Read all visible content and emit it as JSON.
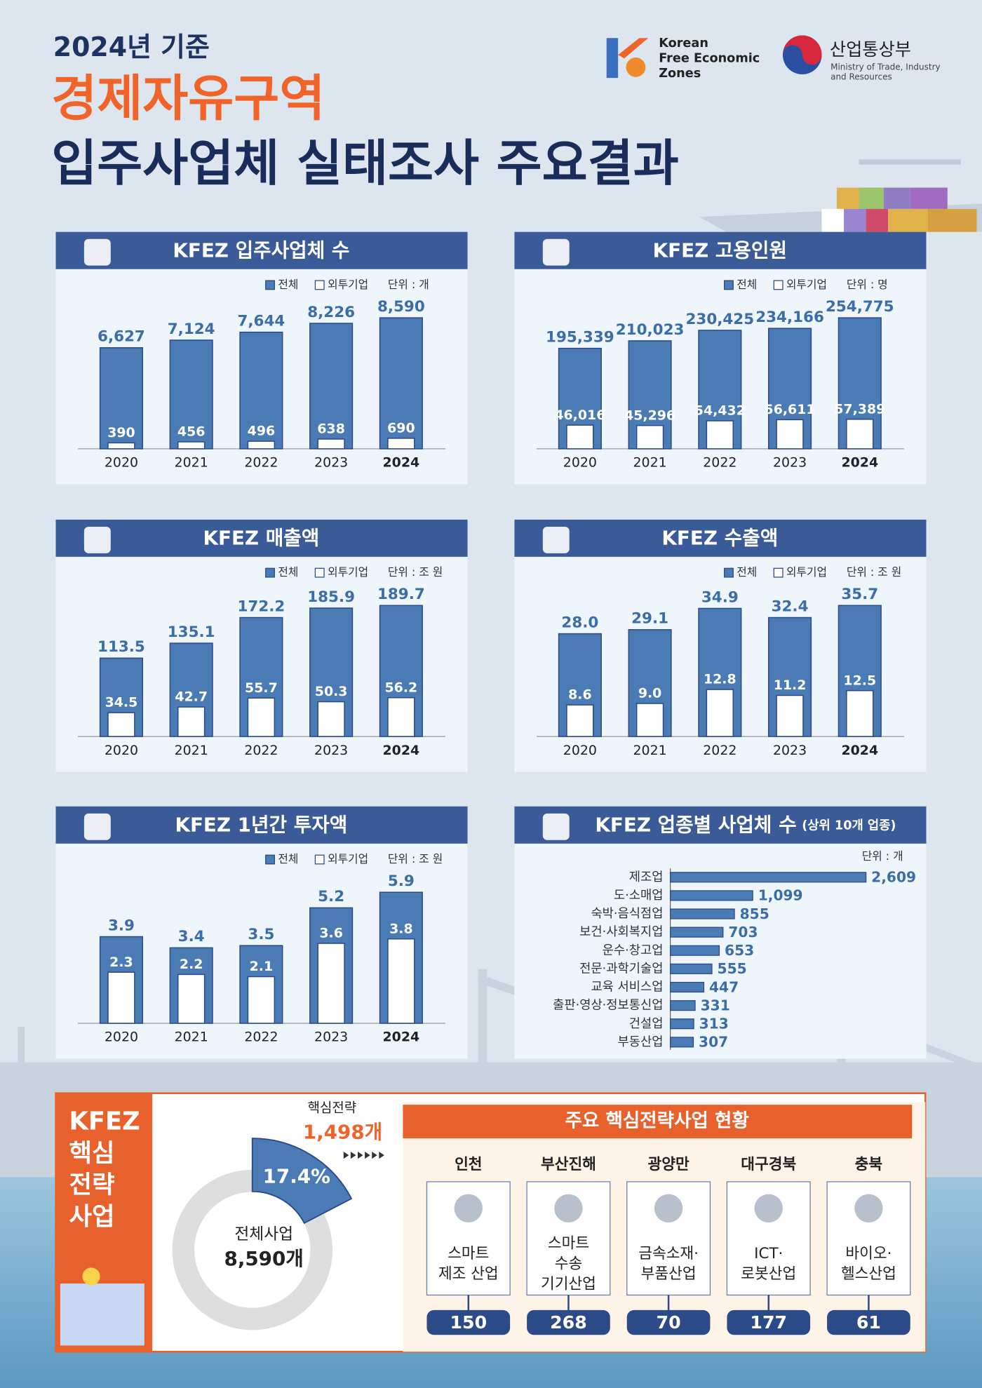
{
  "header": {
    "year_label": "2024년 기준",
    "title_line1": "경제자유구역",
    "title_line2": "입주사업체 실태조사 주요결과",
    "logo_kfez": [
      "Korean",
      "Free Economic",
      "Zones"
    ],
    "logo_ministry": "산업통상부",
    "logo_ministry_en": [
      "Ministry of Trade, Industry",
      "and Resources"
    ]
  },
  "chart_data": [
    {
      "type": "bar",
      "title": "KFEZ 입주사업체 수",
      "unit": "단위 : 개",
      "categories": [
        "2020",
        "2021",
        "2022",
        "2023",
        "2024"
      ],
      "series": [
        {
          "name": "전체",
          "color": "#4a7bb5",
          "values": [
            6627,
            7124,
            7644,
            8226,
            8590
          ],
          "value_labels": [
            "6,627",
            "7,124",
            "7,644",
            "8,226",
            "8,590"
          ]
        },
        {
          "name": "외투기업",
          "color": "#ffffff",
          "values": [
            390,
            456,
            496,
            638,
            690
          ]
        }
      ]
    },
    {
      "type": "bar",
      "title": "KFEZ 고용인원",
      "unit": "단위 : 명",
      "categories": [
        "2020",
        "2021",
        "2022",
        "2023",
        "2024"
      ],
      "series": [
        {
          "name": "전체",
          "color": "#4a7bb5",
          "values": [
            195339,
            210023,
            230425,
            234166,
            254775
          ],
          "value_labels": [
            "195,339",
            "210,023",
            "230,425",
            "234,166",
            "254,775"
          ]
        },
        {
          "name": "외투기업",
          "color": "#ffffff",
          "values": [
            46016,
            45296,
            54432,
            56611,
            57389
          ],
          "value_labels": [
            "46,016",
            "45,296",
            "54,432",
            "56,611",
            "57,389"
          ]
        }
      ]
    },
    {
      "type": "bar",
      "title": "KFEZ 매출액",
      "unit": "단위 : 조 원",
      "categories": [
        "2020",
        "2021",
        "2022",
        "2023",
        "2024"
      ],
      "series": [
        {
          "name": "전체",
          "color": "#4a7bb5",
          "values": [
            113.5,
            135.1,
            172.2,
            185.9,
            189.7
          ]
        },
        {
          "name": "외투기업",
          "color": "#ffffff",
          "values": [
            34.5,
            42.7,
            55.7,
            50.3,
            56.2
          ]
        }
      ]
    },
    {
      "type": "bar",
      "title": "KFEZ 수출액",
      "unit": "단위 : 조 원",
      "categories": [
        "2020",
        "2021",
        "2022",
        "2023",
        "2024"
      ],
      "series": [
        {
          "name": "전체",
          "color": "#4a7bb5",
          "values": [
            28,
            29.1,
            34.9,
            32.4,
            35.7
          ],
          "value_labels": [
            "28.0",
            "29.1",
            "34.9",
            "32.4",
            "35.7"
          ]
        },
        {
          "name": "외투기업",
          "color": "#ffffff",
          "values": [
            8.6,
            9,
            12.8,
            11.2,
            12.5
          ],
          "value_labels": [
            "8.6",
            "9.0",
            "12.8",
            "11.2",
            "12.5"
          ]
        }
      ]
    },
    {
      "type": "bar",
      "title": "KFEZ 1년간 투자액",
      "unit": "단위 : 조 원",
      "categories": [
        "2020",
        "2021",
        "2022",
        "2023",
        "2024"
      ],
      "series": [
        {
          "name": "전체",
          "color": "#4a7bb5",
          "values": [
            3.9,
            3.4,
            3.5,
            5.2,
            5.9
          ]
        },
        {
          "name": "외투기업",
          "color": "#ffffff",
          "values": [
            2.3,
            2.2,
            2.1,
            3.6,
            3.8
          ]
        }
      ]
    },
    {
      "type": "hbar",
      "title": "KFEZ 업종별 사업체 수",
      "subtitle": "(상위 10개 업종)",
      "unit": "단위 : 개",
      "color": "#4a7bb5",
      "categories": [
        "제조업",
        "도·소매업",
        "숙박·음식점업",
        "보건·사회복지업",
        "운수·창고업",
        "전문·과학기술업",
        "교육 서비스업",
        "출판·영상·정보통신업",
        "건설업",
        "부동산업"
      ],
      "values": [
        2609,
        1099,
        855,
        703,
        653,
        555,
        447,
        331,
        313,
        307
      ],
      "value_labels": [
        "2,609",
        "1,099",
        "855",
        "703",
        "653",
        "555",
        "447",
        "331",
        "313",
        "307"
      ]
    },
    {
      "type": "donut",
      "title_lines": [
        "KFEZ",
        "핵심",
        "전략",
        "사업"
      ],
      "highlight_label": "핵심전략",
      "highlight_text": "1,498개",
      "center_label": "전체사업",
      "center_text": "8,590개",
      "values": [
        17.4
      ],
      "value_labels": [
        "17.4%"
      ],
      "color": "#4a7bb5",
      "ring_color": "#dedede"
    }
  ],
  "strategy": {
    "title": "주요 핵심전략사업 현황",
    "items": [
      {
        "region": "인천",
        "lines": [
          "스마트",
          "제조 산업"
        ],
        "count": 150
      },
      {
        "region": "부산진해",
        "lines": [
          "스마트",
          "수송",
          "기기산업"
        ],
        "count": 268
      },
      {
        "region": "광양만",
        "lines": [
          "금속소재·",
          "부품산업"
        ],
        "count": 70
      },
      {
        "region": "대구경북",
        "lines": [
          "ICT·",
          "로봇산업"
        ],
        "count": 177
      },
      {
        "region": "충북",
        "lines": [
          "바이오·",
          "헬스산업"
        ],
        "count": 61
      }
    ]
  }
}
